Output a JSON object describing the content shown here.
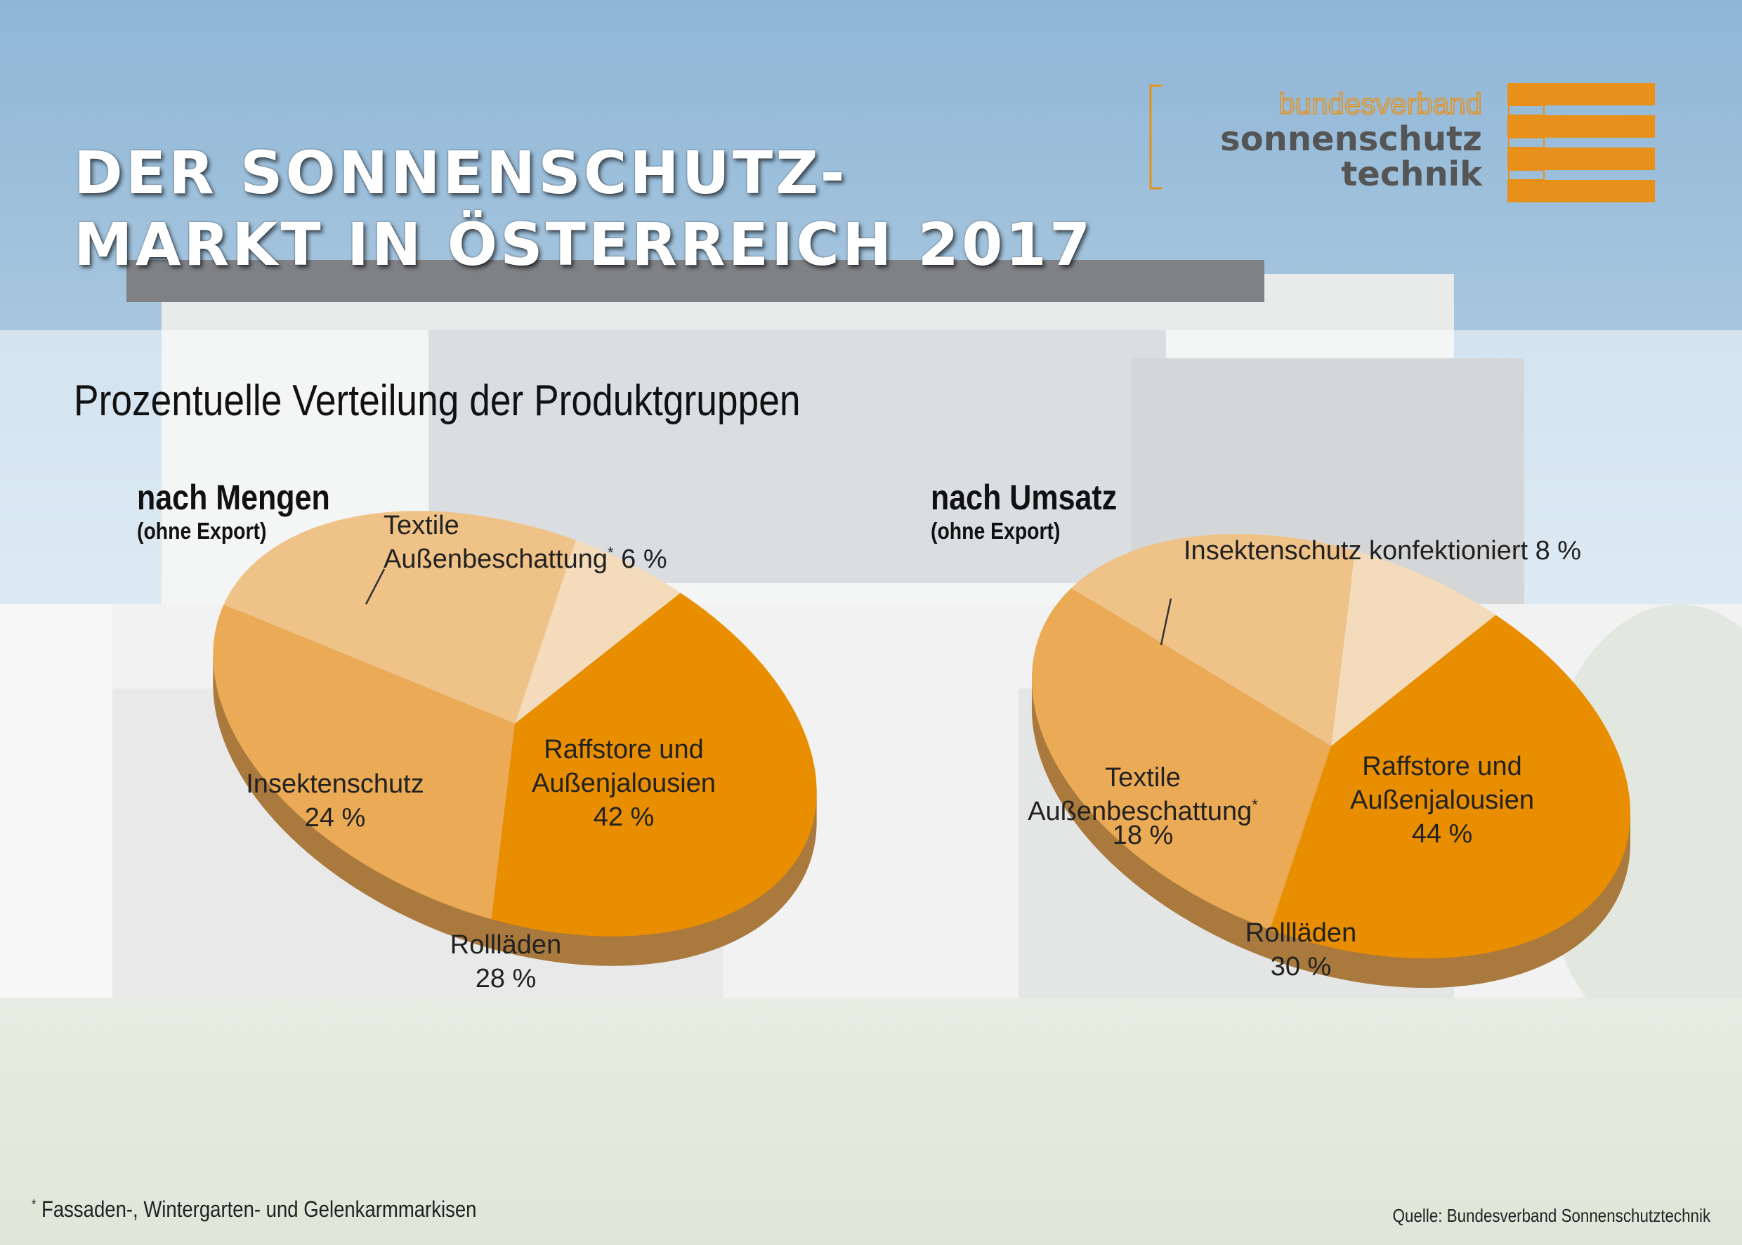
{
  "header": {
    "title_line1": "DER SONNENSCHUTZ-",
    "title_line2": "MARKT IN ÖSTERREICH 2017",
    "subtitle": "Prozentuelle Verteilung der Produktgruppen"
  },
  "logo": {
    "line1": "bundesverband",
    "line2": "sonnenschutz",
    "line3": "technik"
  },
  "colors": {
    "dark_orange": "#E98E00",
    "mid_orange": "#EBAA55",
    "light_orange": "#EFC288",
    "pale_orange": "#F3DBBB",
    "side_brown": "#A9793E",
    "logo_orange": "#E8911A",
    "logo_gray": "#555555"
  },
  "chart_data": [
    {
      "type": "pie",
      "title": "nach Mengen",
      "subtitle": "(ohne Export)",
      "slices": [
        {
          "label_line1": "Raffstore und",
          "label_line2": "Außenjalousien",
          "value": 42,
          "value_label": "42 %"
        },
        {
          "label_line1": "Rollläden",
          "value": 28,
          "value_label": "28 %"
        },
        {
          "label_line1": "Insektenschutz",
          "value": 24,
          "value_label": "24 %"
        },
        {
          "label_line1": "Textile",
          "label_line2": "Außenbeschattung",
          "marker": "*",
          "value": 6,
          "value_label": "6 %"
        }
      ]
    },
    {
      "type": "pie",
      "title": "nach Umsatz",
      "subtitle": "(ohne Export)",
      "slices": [
        {
          "label_line1": "Raffstore und",
          "label_line2": "Außenjalousien",
          "value": 44,
          "value_label": "44 %"
        },
        {
          "label_line1": "Rollläden",
          "value": 30,
          "value_label": "30 %"
        },
        {
          "label_line1": "Textile",
          "label_line2": "Außenbeschattung",
          "marker": "*",
          "value": 18,
          "value_label": "18 %"
        },
        {
          "label_line1": "Insektenschutz konfektioniert",
          "value": 8,
          "value_label": "8 %"
        }
      ]
    }
  ],
  "footnote": {
    "marker": "*",
    "text": "Fassaden-, Wintergarten- und Gelenkarmmarkisen"
  },
  "source": "Quelle: Bundesverband Sonnenschutztechnik"
}
